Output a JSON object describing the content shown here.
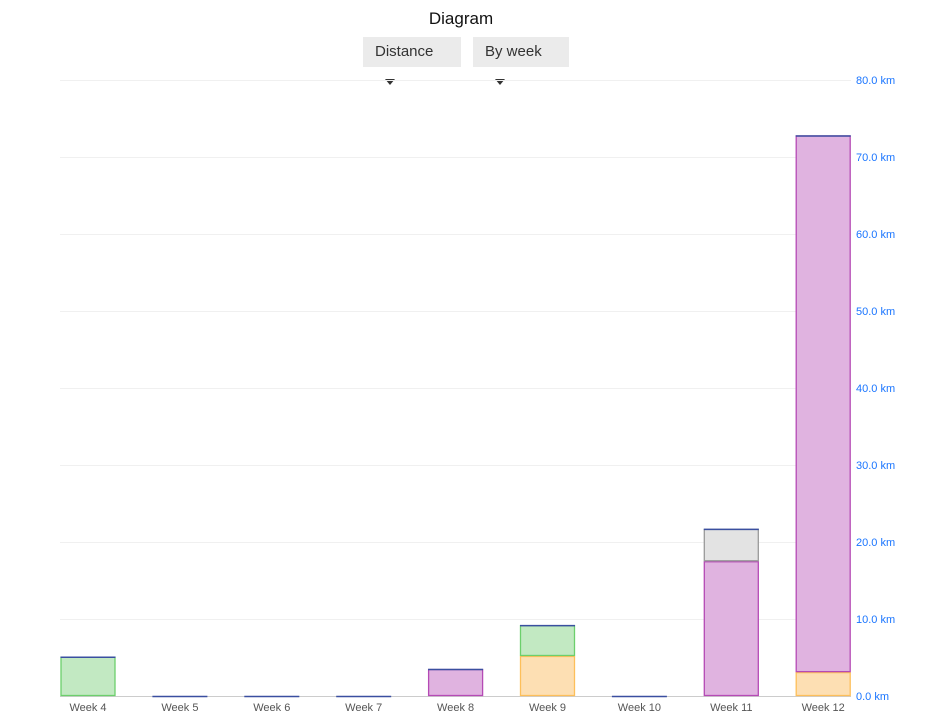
{
  "header": {
    "title": "Diagram",
    "metric_dropdown": "Distance",
    "period_dropdown": "By week"
  },
  "chart_data": {
    "type": "bar",
    "stacked": true,
    "title": "Diagram",
    "categories": [
      "Week 4",
      "Week 5",
      "Week 6",
      "Week 7",
      "Week 8",
      "Week 9",
      "Week 10",
      "Week 11",
      "Week 12"
    ],
    "ylim": [
      0,
      80
    ],
    "y_ticks": [
      "0.0 km",
      "10.0 km",
      "20.0 km",
      "30.0 km",
      "40.0 km",
      "50.0 km",
      "60.0 km",
      "70.0 km",
      "80.0 km"
    ],
    "y_axis_position": "right",
    "grid": true,
    "unit": "km",
    "series": [
      {
        "color": "#fdbf5a",
        "fill": "#fddfb3",
        "values": [
          0,
          0,
          0,
          0,
          0,
          5.2,
          0,
          0,
          3.1
        ]
      },
      {
        "color": "#6ccf6c",
        "fill": "#c2e9c2",
        "values": [
          5.1,
          0,
          0,
          0,
          0,
          4.0,
          0,
          0,
          0
        ]
      },
      {
        "color": "#b54ab5",
        "fill": "#e0b3e0",
        "values": [
          0,
          0,
          0,
          0,
          3.5,
          0,
          0,
          17.5,
          69.7
        ]
      },
      {
        "color": "#999999",
        "fill": "#e3e3e3",
        "values": [
          0,
          0,
          0,
          0,
          0,
          0,
          0,
          4.2,
          0
        ]
      }
    ],
    "colors": {
      "tick_text": "#1a75ff",
      "label_text": "#555555",
      "top_line": "#3a4fa0"
    }
  }
}
